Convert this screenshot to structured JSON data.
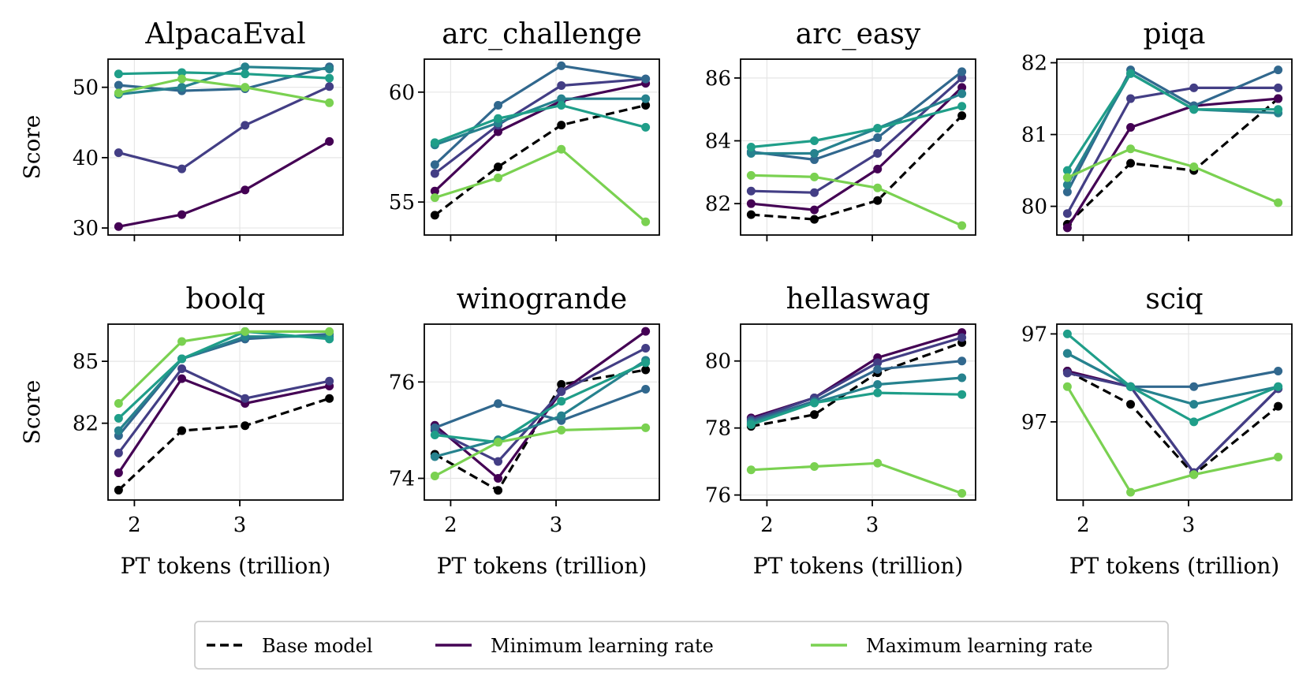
{
  "figure": {
    "legend": {
      "placement": "bottom-center",
      "entries": [
        {
          "label": "Base model",
          "color": "#000000",
          "style": "dashed"
        },
        {
          "label": "Minimum learning rate",
          "color": "#440154",
          "style": "solid"
        },
        {
          "label": "Maximum learning rate",
          "color": "#7ad151",
          "style": "solid"
        }
      ]
    }
  },
  "chart_data": [
    {
      "type": "line",
      "title": "AlpacaEval",
      "xlabel": "",
      "ylabel": "Score",
      "x": [
        1.85,
        2.45,
        3.05,
        3.85
      ],
      "xlim": [
        1.75,
        3.98
      ],
      "ylim": [
        29,
        54
      ],
      "xticks": [
        2,
        3
      ],
      "xtick_labels": [],
      "yticks": [
        30,
        40,
        50
      ],
      "ytick_labels": [
        "30",
        "40",
        "50"
      ],
      "series": [
        {
          "name": "lr1",
          "color": "#440154",
          "values": [
            30.2,
            31.9,
            35.4,
            42.3
          ]
        },
        {
          "name": "lr2",
          "color": "#433e85",
          "values": [
            40.7,
            38.4,
            44.6,
            50.1
          ]
        },
        {
          "name": "lr3",
          "color": "#31688e",
          "values": [
            50.3,
            49.5,
            49.8,
            52.9
          ]
        },
        {
          "name": "lr4",
          "color": "#26828e",
          "values": [
            49.0,
            50.0,
            52.9,
            52.6
          ]
        },
        {
          "name": "lr5",
          "color": "#1f9e89",
          "values": [
            51.9,
            52.1,
            51.9,
            51.3
          ]
        },
        {
          "name": "Maximum learning rate",
          "color": "#7ad151",
          "values": [
            49.2,
            51.2,
            50.0,
            47.8
          ]
        }
      ]
    },
    {
      "type": "line",
      "title": "arc_challenge",
      "xlabel": "",
      "ylabel": "",
      "x": [
        1.85,
        2.45,
        3.05,
        3.85
      ],
      "xlim": [
        1.75,
        3.98
      ],
      "ylim": [
        53.5,
        61.5
      ],
      "xticks": [
        2,
        3
      ],
      "xtick_labels": [],
      "yticks": [
        55,
        60
      ],
      "ytick_labels": [
        "55",
        "60"
      ],
      "series": [
        {
          "name": "Base model",
          "color": "#000000",
          "dashed": true,
          "values": [
            54.4,
            56.6,
            58.5,
            59.4
          ]
        },
        {
          "name": "lr1",
          "color": "#440154",
          "values": [
            55.5,
            58.2,
            59.6,
            60.4
          ]
        },
        {
          "name": "lr2",
          "color": "#433e85",
          "values": [
            56.3,
            58.5,
            60.3,
            60.6
          ]
        },
        {
          "name": "lr3",
          "color": "#31688e",
          "values": [
            56.7,
            59.4,
            61.2,
            60.6
          ]
        },
        {
          "name": "lr4",
          "color": "#26828e",
          "values": [
            57.6,
            58.6,
            59.7,
            59.7
          ]
        },
        {
          "name": "lr5",
          "color": "#1f9e89",
          "values": [
            57.7,
            58.8,
            59.4,
            58.4
          ]
        },
        {
          "name": "Maximum learning rate",
          "color": "#7ad151",
          "values": [
            55.2,
            56.1,
            57.4,
            54.1
          ]
        }
      ]
    },
    {
      "type": "line",
      "title": "arc_easy",
      "xlabel": "",
      "ylabel": "",
      "x": [
        1.85,
        2.45,
        3.05,
        3.85
      ],
      "xlim": [
        1.75,
        3.98
      ],
      "ylim": [
        81,
        86.6
      ],
      "xticks": [
        2,
        3
      ],
      "xtick_labels": [],
      "yticks": [
        82,
        84,
        86
      ],
      "ytick_labels": [
        "82",
        "84",
        "86"
      ],
      "series": [
        {
          "name": "Base model",
          "color": "#000000",
          "dashed": true,
          "values": [
            81.65,
            81.5,
            82.1,
            84.8
          ]
        },
        {
          "name": "lr1",
          "color": "#440154",
          "values": [
            82.0,
            81.8,
            83.1,
            85.7
          ]
        },
        {
          "name": "lr2",
          "color": "#433e85",
          "values": [
            82.4,
            82.35,
            83.6,
            86.0
          ]
        },
        {
          "name": "lr3",
          "color": "#31688e",
          "values": [
            83.65,
            83.4,
            84.1,
            86.2
          ]
        },
        {
          "name": "lr4",
          "color": "#26828e",
          "values": [
            83.6,
            83.6,
            84.4,
            85.5
          ]
        },
        {
          "name": "lr5",
          "color": "#1f9e89",
          "values": [
            83.8,
            84.0,
            84.4,
            85.1
          ]
        },
        {
          "name": "Maximum learning rate",
          "color": "#7ad151",
          "values": [
            82.9,
            82.85,
            82.5,
            81.3
          ]
        }
      ]
    },
    {
      "type": "line",
      "title": "piqa",
      "xlabel": "",
      "ylabel": "",
      "x": [
        1.85,
        2.45,
        3.05,
        3.85
      ],
      "xlim": [
        1.75,
        3.98
      ],
      "ylim": [
        79.6,
        82.05
      ],
      "xticks": [
        2,
        3
      ],
      "xtick_labels": [],
      "yticks": [
        80,
        81,
        82
      ],
      "ytick_labels": [
        "80",
        "81",
        "82"
      ],
      "series": [
        {
          "name": "Base model",
          "color": "#000000",
          "dashed": true,
          "values": [
            79.75,
            80.6,
            80.5,
            81.5
          ]
        },
        {
          "name": "lr1",
          "color": "#440154",
          "values": [
            79.7,
            81.1,
            81.4,
            81.5
          ]
        },
        {
          "name": "lr2",
          "color": "#433e85",
          "values": [
            79.9,
            81.5,
            81.65,
            81.65
          ]
        },
        {
          "name": "lr3",
          "color": "#31688e",
          "values": [
            80.2,
            81.9,
            81.4,
            81.9
          ]
        },
        {
          "name": "lr4",
          "color": "#26828e",
          "values": [
            80.3,
            81.85,
            81.35,
            81.3
          ]
        },
        {
          "name": "lr5",
          "color": "#1f9e89",
          "values": [
            80.5,
            81.85,
            81.35,
            81.35
          ]
        },
        {
          "name": "Maximum learning rate",
          "color": "#7ad151",
          "values": [
            80.4,
            80.8,
            80.55,
            80.05
          ]
        }
      ]
    },
    {
      "type": "line",
      "title": "boolq",
      "xlabel": "PT tokens (trillion)",
      "ylabel": "Score",
      "x": [
        1.85,
        2.45,
        3.05,
        3.85
      ],
      "xlim": [
        1.75,
        3.98
      ],
      "ylim": [
        79.4,
        86.5
      ],
      "xticks": [
        2,
        3
      ],
      "xtick_labels": [
        "2",
        "3"
      ],
      "yticks": [
        82.5,
        85
      ],
      "ytick_labels": [
        "82",
        "85"
      ],
      "series": [
        {
          "name": "Base model",
          "color": "#000000",
          "dashed": true,
          "values": [
            79.8,
            82.2,
            82.4,
            83.5
          ]
        },
        {
          "name": "lr1",
          "color": "#440154",
          "values": [
            80.5,
            84.3,
            83.3,
            84.0
          ]
        },
        {
          "name": "lr2",
          "color": "#433e85",
          "values": [
            81.3,
            84.7,
            83.5,
            84.2
          ]
        },
        {
          "name": "lr3",
          "color": "#31688e",
          "values": [
            82.0,
            85.1,
            85.9,
            86.1
          ]
        },
        {
          "name": "lr4",
          "color": "#26828e",
          "values": [
            82.2,
            85.1,
            86.0,
            86.0
          ]
        },
        {
          "name": "lr5",
          "color": "#1f9e89",
          "values": [
            82.7,
            85.1,
            86.2,
            85.9
          ]
        },
        {
          "name": "Maximum learning rate",
          "color": "#7ad151",
          "values": [
            83.3,
            85.8,
            86.2,
            86.2
          ]
        }
      ]
    },
    {
      "type": "line",
      "title": "winogrande",
      "xlabel": "PT tokens (trillion)",
      "ylabel": "",
      "x": [
        1.85,
        2.45,
        3.05,
        3.85
      ],
      "xlim": [
        1.75,
        3.98
      ],
      "ylim": [
        73.55,
        77.2
      ],
      "xticks": [
        2,
        3
      ],
      "xtick_labels": [
        "2",
        "3"
      ],
      "yticks": [
        74,
        76
      ],
      "ytick_labels": [
        "74",
        "76"
      ],
      "series": [
        {
          "name": "Base model",
          "color": "#000000",
          "dashed": true,
          "values": [
            74.5,
            73.75,
            75.95,
            76.25
          ]
        },
        {
          "name": "lr1",
          "color": "#440154",
          "values": [
            75.1,
            74.0,
            75.8,
            77.05
          ]
        },
        {
          "name": "lr2",
          "color": "#433e85",
          "values": [
            75.0,
            74.35,
            75.8,
            76.7
          ]
        },
        {
          "name": "lr3",
          "color": "#31688e",
          "values": [
            75.05,
            75.55,
            75.2,
            75.85
          ]
        },
        {
          "name": "lr4",
          "color": "#26828e",
          "values": [
            74.45,
            74.8,
            75.3,
            76.45
          ]
        },
        {
          "name": "lr5",
          "color": "#1f9e89",
          "values": [
            74.9,
            74.75,
            75.6,
            76.4
          ]
        },
        {
          "name": "Maximum learning rate",
          "color": "#7ad151",
          "values": [
            74.05,
            74.75,
            75.0,
            75.05
          ]
        }
      ]
    },
    {
      "type": "line",
      "title": "hellaswag",
      "xlabel": "PT tokens (trillion)",
      "ylabel": "",
      "x": [
        1.85,
        2.45,
        3.05,
        3.85
      ],
      "xlim": [
        1.75,
        3.98
      ],
      "ylim": [
        75.85,
        81.1
      ],
      "xticks": [
        2,
        3
      ],
      "xtick_labels": [
        "2",
        "3"
      ],
      "yticks": [
        76,
        78,
        80
      ],
      "ytick_labels": [
        "76",
        "78",
        "80"
      ],
      "series": [
        {
          "name": "Base model",
          "color": "#000000",
          "dashed": true,
          "values": [
            78.05,
            78.4,
            79.65,
            80.55
          ]
        },
        {
          "name": "lr1",
          "color": "#440154",
          "values": [
            78.3,
            78.9,
            80.1,
            80.85
          ]
        },
        {
          "name": "lr2",
          "color": "#433e85",
          "values": [
            78.25,
            78.9,
            79.95,
            80.7
          ]
        },
        {
          "name": "lr3",
          "color": "#31688e",
          "values": [
            78.2,
            78.8,
            79.75,
            80.0
          ]
        },
        {
          "name": "lr4",
          "color": "#26828e",
          "values": [
            78.15,
            78.75,
            79.3,
            79.5
          ]
        },
        {
          "name": "lr5",
          "color": "#1f9e89",
          "values": [
            78.1,
            78.75,
            79.05,
            79.0
          ]
        },
        {
          "name": "Maximum learning rate",
          "color": "#7ad151",
          "values": [
            76.75,
            76.85,
            76.95,
            76.05
          ]
        }
      ]
    },
    {
      "type": "line",
      "title": "sciq",
      "xlabel": "PT tokens (trillion)",
      "ylabel": "",
      "x": [
        1.85,
        2.45,
        3.05,
        3.85
      ],
      "xlim": [
        1.75,
        3.98
      ],
      "ylim": [
        96.6,
        97.5
      ],
      "xticks": [
        2,
        3
      ],
      "xtick_labels": [
        "2",
        "3"
      ],
      "yticks": [
        97.0,
        97.45
      ],
      "ytick_labels": [
        "97",
        "97"
      ],
      "series": [
        {
          "name": "Base model",
          "color": "#000000",
          "dashed": true,
          "values": [
            97.26,
            97.09,
            96.73,
            97.08
          ]
        },
        {
          "name": "lr1",
          "color": "#440154",
          "values": [
            97.26,
            97.18,
            96.74,
            97.17
          ]
        },
        {
          "name": "lr2",
          "color": "#433e85",
          "values": [
            97.25,
            97.18,
            96.74,
            97.17
          ]
        },
        {
          "name": "lr3",
          "color": "#31688e",
          "values": [
            97.35,
            97.18,
            97.18,
            97.26
          ]
        },
        {
          "name": "lr4",
          "color": "#26828e",
          "values": [
            97.35,
            97.18,
            97.09,
            97.18
          ]
        },
        {
          "name": "lr5",
          "color": "#1f9e89",
          "values": [
            97.45,
            97.18,
            97.0,
            97.18
          ]
        },
        {
          "name": "Maximum learning rate",
          "color": "#7ad151",
          "values": [
            97.18,
            96.64,
            96.73,
            96.82
          ]
        }
      ]
    }
  ]
}
